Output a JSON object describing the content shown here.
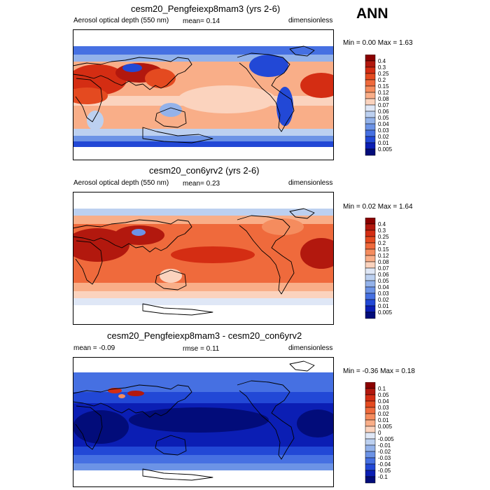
{
  "season": "ANN",
  "panels": [
    {
      "title": "cesm20_Pengfeiexp8mam3 (yrs 2-6)",
      "left_label": "Aerosol optical depth (550 nm)",
      "mid_label": "mean=  0.14",
      "right_label": "dimensionless",
      "minmax": "Min =  0.00 Max =  1.63",
      "colorbar_labels": [
        "0.4",
        "0.3",
        "0.25",
        "0.2",
        "0.15",
        "0.12",
        "0.08",
        "0.07",
        "0.06",
        "0.05",
        "0.04",
        "0.03",
        "0.02",
        "0.01",
        "0.005"
      ]
    },
    {
      "title": "cesm20_con6yrv2 (yrs 2-6)",
      "left_label": "Aerosol optical depth (550 nm)",
      "mid_label": "mean=  0.23",
      "right_label": "dimensionless",
      "minmax": "Min =  0.02 Max =  1.64",
      "colorbar_labels": [
        "0.4",
        "0.3",
        "0.25",
        "0.2",
        "0.15",
        "0.12",
        "0.08",
        "0.07",
        "0.06",
        "0.05",
        "0.04",
        "0.03",
        "0.02",
        "0.01",
        "0.005"
      ]
    },
    {
      "title": "cesm20_Pengfeiexp8mam3 - cesm20_con6yrv2",
      "left_label": "mean =  -0.09",
      "mid_label": "rmse =  0.11",
      "right_label": "dimensionless",
      "minmax": "Min =  -0.36 Max =  0.18",
      "colorbar_labels": [
        "0.1",
        "0.05",
        "0.04",
        "0.03",
        "0.02",
        "0.01",
        "0.005",
        "0",
        "-0.005",
        "-0.01",
        "-0.02",
        "-0.03",
        "-0.04",
        "-0.05",
        "-0.1"
      ]
    }
  ],
  "colors": {
    "abs_scale": [
      "#8b0000",
      "#b2180e",
      "#d42d13",
      "#e44a20",
      "#ef6a3c",
      "#f58c5e",
      "#f9ae88",
      "#fbd3be",
      "#dfe7f6",
      "#bcd0f0",
      "#93b2ea",
      "#6c93e6",
      "#4670e2",
      "#2248d6",
      "#0b1eb4",
      "#020c7a"
    ],
    "diff_scale": [
      "#8b0000",
      "#b2180e",
      "#d42d13",
      "#e44a20",
      "#ef6a3c",
      "#f58c5e",
      "#f9ae88",
      "#fbd3be",
      "#dfe7f6",
      "#bcd0f0",
      "#93b2ea",
      "#6c93e6",
      "#4670e2",
      "#2248d6",
      "#0b1eb4",
      "#020c7a"
    ]
  }
}
